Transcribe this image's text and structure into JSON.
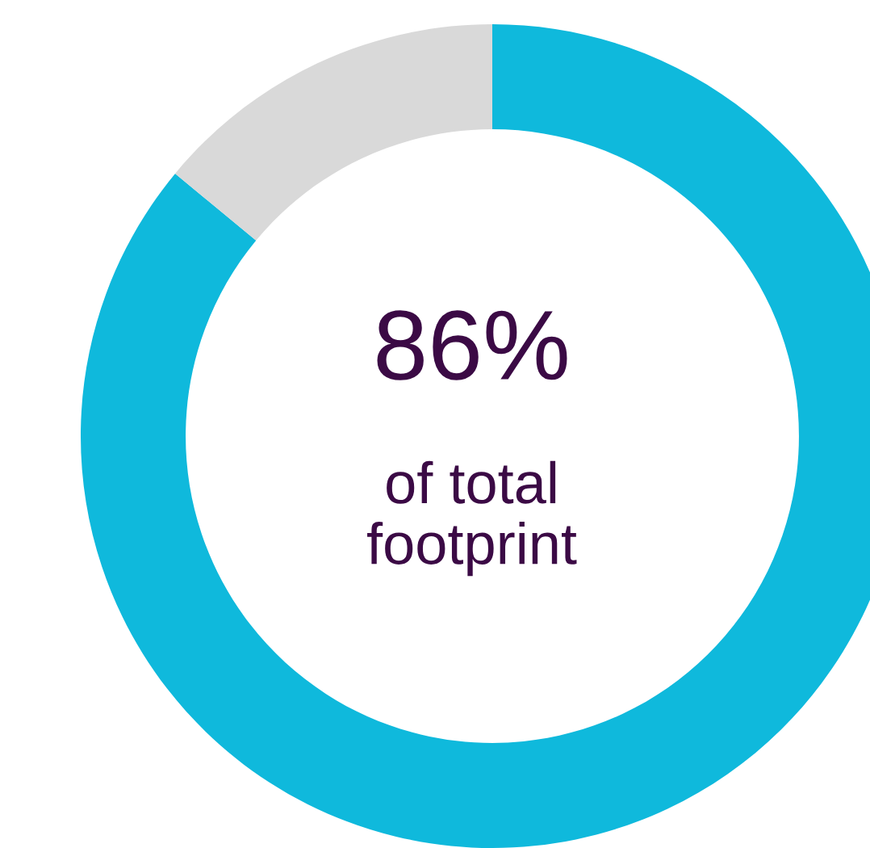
{
  "chart_data": {
    "type": "donut",
    "categories": [
      null,
      null
    ],
    "values": [
      86,
      14
    ],
    "colors": [
      "#0fb9dc",
      "#d9d9d9"
    ],
    "annotations": [
      "86%",
      "of total\nfootprint"
    ]
  }
}
